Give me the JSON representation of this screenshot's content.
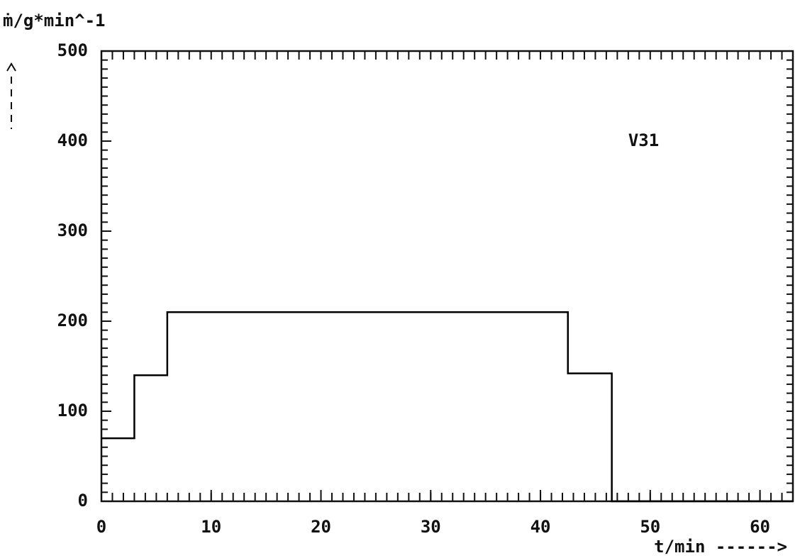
{
  "chart_data": {
    "type": "line",
    "y_label": "ṁ/g*min^-1",
    "x_label": "t/min ------>",
    "annotation": "V31",
    "annotation_pos": [
      48,
      400
    ],
    "xlim": [
      0,
      63
    ],
    "ylim": [
      0,
      500
    ],
    "xticks": [
      0,
      10,
      20,
      30,
      40,
      50,
      60
    ],
    "yticks": [
      0,
      100,
      200,
      300,
      400,
      500
    ],
    "x_minor_step": 1,
    "y_minor_step": 10,
    "series": [
      {
        "color": "#000000",
        "x": [
          0,
          3,
          3,
          6,
          6,
          42.5,
          42.5,
          46.5,
          46.5,
          63
        ],
        "values": [
          70,
          70,
          140,
          140,
          210,
          210,
          142,
          142,
          0,
          0
        ]
      }
    ]
  }
}
